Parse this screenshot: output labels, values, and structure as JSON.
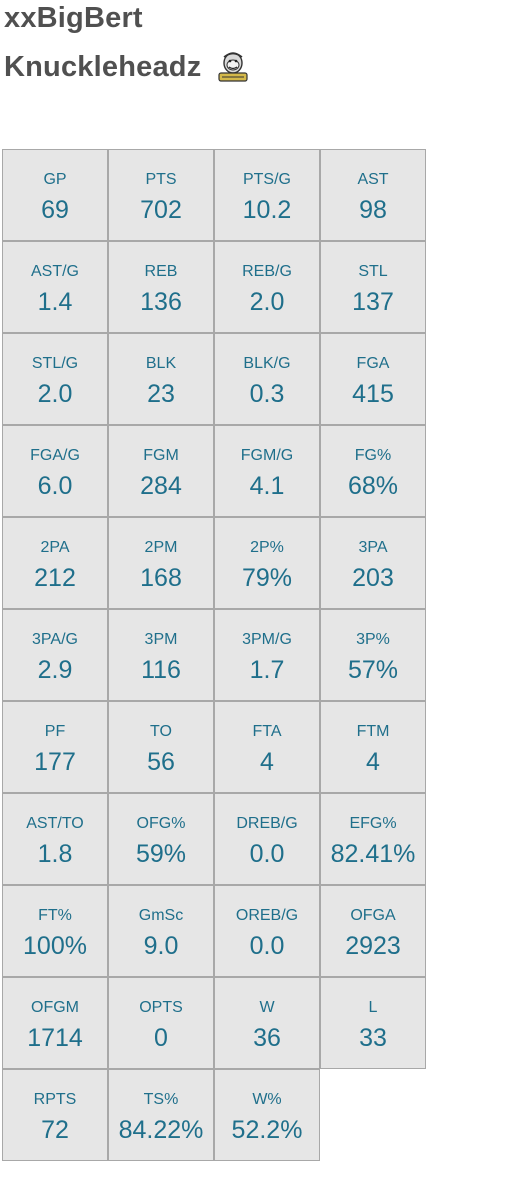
{
  "header": {
    "player_name": "xxBigBert",
    "team_name": "Knuckleheadz",
    "team_logo_icon": "gorilla-logo-icon"
  },
  "colors": {
    "text_dark": "#505050",
    "stat_text": "#1f6f8b",
    "cell_bg": "#e6e6e6",
    "cell_border": "#a8a8a8"
  },
  "stats": [
    {
      "label": "GP",
      "value": "69"
    },
    {
      "label": "PTS",
      "value": "702"
    },
    {
      "label": "PTS/G",
      "value": "10.2"
    },
    {
      "label": "AST",
      "value": "98"
    },
    {
      "label": "AST/G",
      "value": "1.4"
    },
    {
      "label": "REB",
      "value": "136"
    },
    {
      "label": "REB/G",
      "value": "2.0"
    },
    {
      "label": "STL",
      "value": "137"
    },
    {
      "label": "STL/G",
      "value": "2.0"
    },
    {
      "label": "BLK",
      "value": "23"
    },
    {
      "label": "BLK/G",
      "value": "0.3"
    },
    {
      "label": "FGA",
      "value": "415"
    },
    {
      "label": "FGA/G",
      "value": "6.0"
    },
    {
      "label": "FGM",
      "value": "284"
    },
    {
      "label": "FGM/G",
      "value": "4.1"
    },
    {
      "label": "FG%",
      "value": "68%"
    },
    {
      "label": "2PA",
      "value": "212"
    },
    {
      "label": "2PM",
      "value": "168"
    },
    {
      "label": "2P%",
      "value": "79%"
    },
    {
      "label": "3PA",
      "value": "203"
    },
    {
      "label": "3PA/G",
      "value": "2.9"
    },
    {
      "label": "3PM",
      "value": "116"
    },
    {
      "label": "3PM/G",
      "value": "1.7"
    },
    {
      "label": "3P%",
      "value": "57%"
    },
    {
      "label": "PF",
      "value": "177"
    },
    {
      "label": "TO",
      "value": "56"
    },
    {
      "label": "FTA",
      "value": "4"
    },
    {
      "label": "FTM",
      "value": "4"
    },
    {
      "label": "AST/TO",
      "value": "1.8"
    },
    {
      "label": "OFG%",
      "value": "59%"
    },
    {
      "label": "DREB/G",
      "value": "0.0"
    },
    {
      "label": "EFG%",
      "value": "82.41%"
    },
    {
      "label": "FT%",
      "value": "100%"
    },
    {
      "label": "GmSc",
      "value": "9.0"
    },
    {
      "label": "OREB/G",
      "value": "0.0"
    },
    {
      "label": "OFGA",
      "value": "2923"
    },
    {
      "label": "OFGM",
      "value": "1714"
    },
    {
      "label": "OPTS",
      "value": "0"
    },
    {
      "label": "W",
      "value": "36"
    },
    {
      "label": "L",
      "value": "33"
    },
    {
      "label": "RPTS",
      "value": "72"
    },
    {
      "label": "TS%",
      "value": "84.22%"
    },
    {
      "label": "W%",
      "value": "52.2%"
    }
  ]
}
